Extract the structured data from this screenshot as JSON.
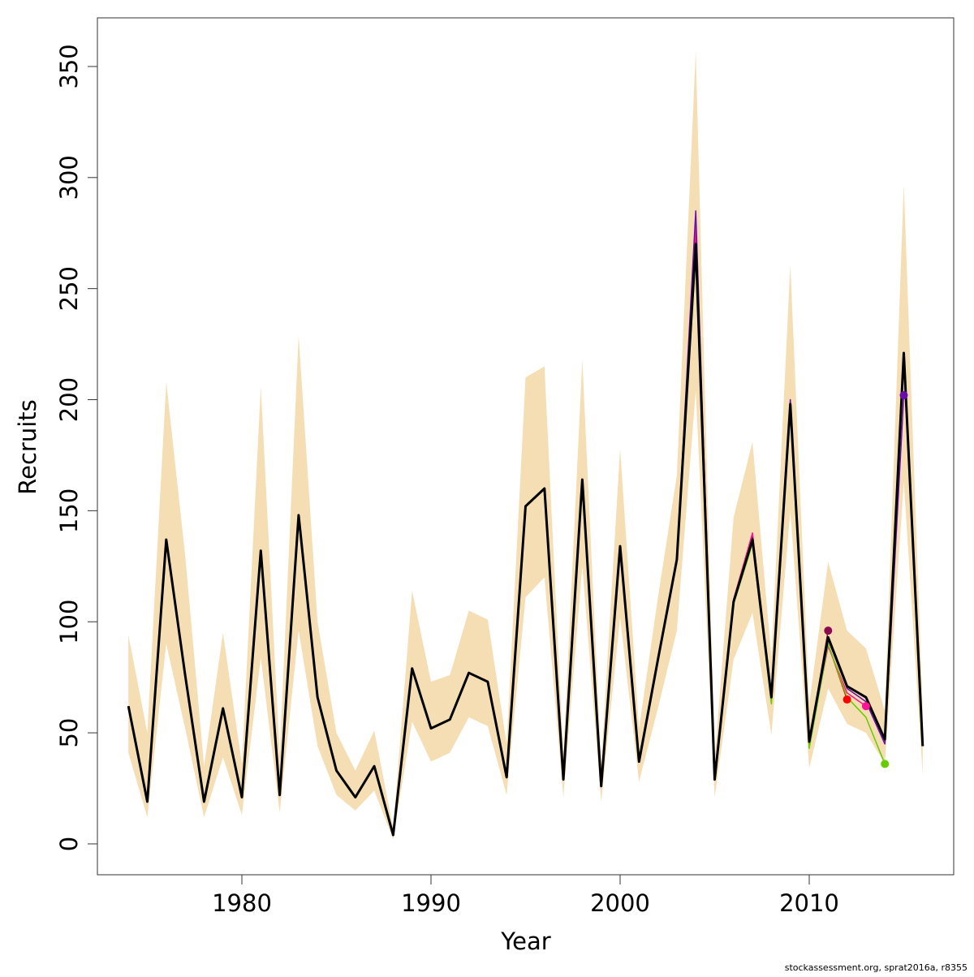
{
  "chart_data": {
    "type": "line",
    "xlabel": "Year",
    "ylabel": "Recruits",
    "footnote": "stockassessment.org, sprat2016a, r8355",
    "x": [
      1974,
      1975,
      1976,
      1977,
      1978,
      1979,
      1980,
      1981,
      1982,
      1983,
      1984,
      1985,
      1986,
      1987,
      1988,
      1989,
      1990,
      1991,
      1992,
      1993,
      1994,
      1995,
      1996,
      1997,
      1998,
      1999,
      2000,
      2001,
      2002,
      2003,
      2004,
      2005,
      2006,
      2007,
      2008,
      2009,
      2010,
      2011,
      2012,
      2013,
      2014,
      2015,
      2016
    ],
    "band": {
      "color": "#f5deb3",
      "upper": [
        94,
        50,
        208,
        130,
        35,
        95,
        36,
        206,
        40,
        229,
        100,
        50,
        33,
        51,
        7,
        114,
        73,
        76,
        105,
        101,
        45,
        210,
        215,
        40,
        218,
        36,
        178,
        52,
        111,
        166,
        357,
        38,
        147,
        181,
        84,
        261,
        63,
        127,
        96,
        88,
        60,
        297,
        60
      ],
      "lower": [
        41,
        12,
        90,
        52,
        12,
        39,
        13,
        84,
        14,
        96,
        44,
        22,
        15,
        24,
        2,
        55,
        37,
        41,
        57,
        53,
        22,
        111,
        120,
        21,
        125,
        19,
        102,
        28,
        61,
        96,
        204,
        21,
        83,
        104,
        49,
        150,
        34,
        70,
        54,
        50,
        36,
        163,
        31
      ]
    },
    "series": [
      {
        "color": "#8b0a50",
        "values": [
          62,
          19,
          137,
          76,
          19,
          61,
          21,
          132,
          22,
          148,
          66,
          33,
          21,
          35,
          4,
          79,
          52,
          56,
          77,
          73,
          30,
          152,
          160,
          29,
          164,
          26,
          134,
          37,
          83,
          128,
          276,
          29,
          109,
          138,
          66,
          198,
          46,
          96,
          null,
          null,
          null,
          null,
          null
        ]
      },
      {
        "color": "#ff0000",
        "values": [
          62,
          19,
          137,
          76,
          19,
          61,
          21,
          132,
          22,
          148,
          66,
          33,
          21,
          35,
          4,
          79,
          52,
          56,
          77,
          73,
          30,
          152,
          160,
          29,
          164,
          26,
          134,
          37,
          83,
          128,
          278,
          29,
          110,
          139,
          66,
          198,
          46,
          90,
          65,
          null,
          null,
          null,
          null
        ]
      },
      {
        "color": "#ff1493",
        "values": [
          62,
          19,
          137,
          76,
          19,
          61,
          21,
          132,
          22,
          148,
          66,
          33,
          21,
          35,
          4,
          79,
          52,
          56,
          77,
          73,
          30,
          152,
          160,
          29,
          164,
          26,
          134,
          37,
          83,
          128,
          280,
          29,
          110,
          140,
          66,
          199,
          45,
          89,
          68,
          62,
          null,
          null,
          null
        ]
      },
      {
        "color": "#66cc00",
        "values": [
          62,
          19,
          137,
          76,
          19,
          61,
          21,
          132,
          22,
          148,
          66,
          33,
          21,
          35,
          4,
          79,
          52,
          56,
          77,
          73,
          30,
          152,
          160,
          29,
          164,
          26,
          134,
          37,
          83,
          128,
          265,
          29,
          108,
          135,
          63,
          195,
          43,
          90,
          66,
          57,
          36,
          null,
          null
        ]
      },
      {
        "color": "#6a0dad",
        "values": [
          62,
          19,
          137,
          76,
          19,
          61,
          21,
          132,
          22,
          148,
          66,
          33,
          21,
          35,
          4,
          79,
          52,
          56,
          77,
          73,
          30,
          152,
          160,
          29,
          164,
          26,
          134,
          37,
          83,
          128,
          285,
          29,
          109,
          138,
          66,
          200,
          47,
          92,
          70,
          64,
          45,
          202,
          null
        ]
      },
      {
        "color": "#000000",
        "values": [
          62,
          19,
          137,
          76,
          19,
          61,
          21,
          132,
          22,
          148,
          66,
          33,
          21,
          35,
          4,
          79,
          52,
          56,
          77,
          73,
          30,
          152,
          160,
          29,
          164,
          26,
          134,
          37,
          83,
          128,
          270,
          29,
          109,
          137,
          66,
          198,
          46,
          93,
          71,
          66,
          47,
          221,
          44
        ]
      }
    ],
    "xlim": [
      1972.36,
      2017.64
    ],
    "ylim": [
      -13.9,
      371.9
    ],
    "xticks": [
      1980,
      1990,
      2000,
      2010
    ],
    "yticks": [
      0,
      50,
      100,
      150,
      200,
      250,
      300,
      350
    ]
  }
}
